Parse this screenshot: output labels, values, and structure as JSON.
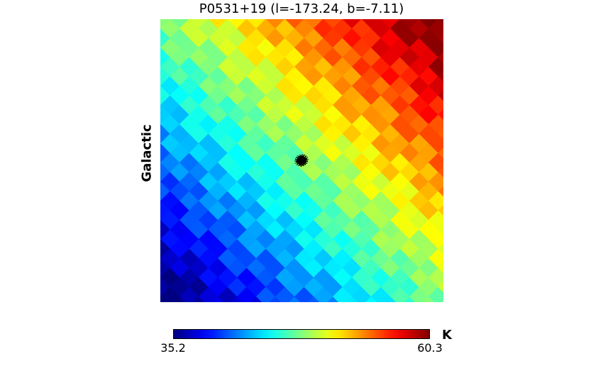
{
  "chart_data": {
    "type": "heatmap",
    "title": "P0531+19 (l=-173.24, b=-7.11)",
    "ylabel": "Galactic",
    "projection": "HEALPix gnomonic cutout",
    "colormap": "jet",
    "colorbar": {
      "min_label": "35.2",
      "max_label": "60.3",
      "min": 35.2,
      "max": 60.3,
      "unit": "K",
      "placement": "bottom"
    },
    "gradient_direction": "increasing from bottom-left to top-right",
    "marker": {
      "symbol": "star cluster",
      "color": "#000000"
    }
  }
}
